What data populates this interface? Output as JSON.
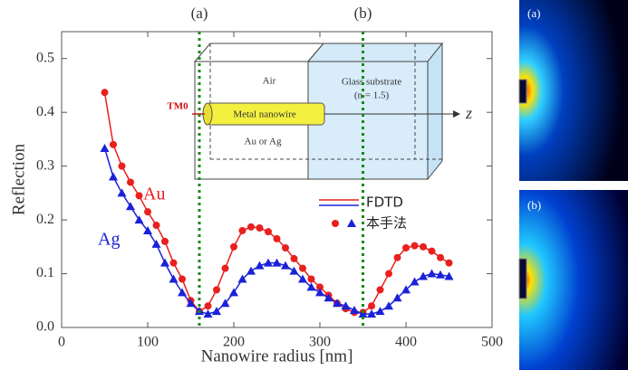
{
  "chart_data": {
    "type": "line",
    "xlabel": "Nanowire radius [nm]",
    "ylabel": "Reflection",
    "xlim": [
      0,
      500
    ],
    "ylim": [
      0,
      0.55
    ],
    "xticks": [
      0,
      100,
      200,
      300,
      400,
      500
    ],
    "yticks": [
      {
        "value": 0,
        "label": "0.0"
      },
      0.1,
      0.2,
      0.3,
      0.4,
      0.5
    ],
    "x": [
      50,
      60,
      70,
      80,
      90,
      100,
      110,
      120,
      130,
      140,
      150,
      160,
      170,
      180,
      190,
      200,
      210,
      220,
      230,
      240,
      250,
      260,
      270,
      280,
      290,
      300,
      310,
      320,
      330,
      340,
      350,
      360,
      370,
      380,
      390,
      400,
      410,
      420,
      430,
      440,
      450
    ],
    "series": [
      {
        "name": "Au",
        "color": "#e8201e",
        "marker": "circle",
        "values": [
          0.437,
          0.34,
          0.3,
          0.27,
          0.245,
          0.215,
          0.19,
          0.16,
          0.12,
          0.09,
          0.05,
          0.03,
          0.04,
          0.07,
          0.11,
          0.15,
          0.18,
          0.187,
          0.185,
          0.178,
          0.165,
          0.148,
          0.128,
          0.11,
          0.09,
          0.075,
          0.06,
          0.045,
          0.035,
          0.028,
          0.028,
          0.04,
          0.07,
          0.1,
          0.13,
          0.148,
          0.152,
          0.15,
          0.142,
          0.13,
          0.12
        ]
      },
      {
        "name": "Ag",
        "color": "#1a22d8",
        "marker": "triangle",
        "values": [
          0.333,
          0.28,
          0.25,
          0.225,
          0.2,
          0.18,
          0.155,
          0.12,
          0.09,
          0.065,
          0.045,
          0.03,
          0.025,
          0.03,
          0.045,
          0.065,
          0.09,
          0.105,
          0.115,
          0.12,
          0.12,
          0.115,
          0.105,
          0.09,
          0.075,
          0.065,
          0.055,
          0.045,
          0.04,
          0.032,
          0.025,
          0.025,
          0.03,
          0.04,
          0.055,
          0.07,
          0.085,
          0.095,
          0.1,
          0.098,
          0.095
        ]
      }
    ],
    "legend": {
      "line_label": "FDTD",
      "marker_label": "本手法"
    },
    "reference_lines": [
      {
        "x": 160,
        "label": "(a)"
      },
      {
        "x": 350,
        "label": "(b)"
      }
    ],
    "inset": {
      "air": "Air",
      "glass": "Glass substrate",
      "index": "(n = 1.5)",
      "mode": "TM0",
      "wire": "Metal nanowire",
      "metal": "Au or Ag",
      "axis": "z"
    },
    "side_panels": [
      "(a)",
      "(b)"
    ]
  }
}
